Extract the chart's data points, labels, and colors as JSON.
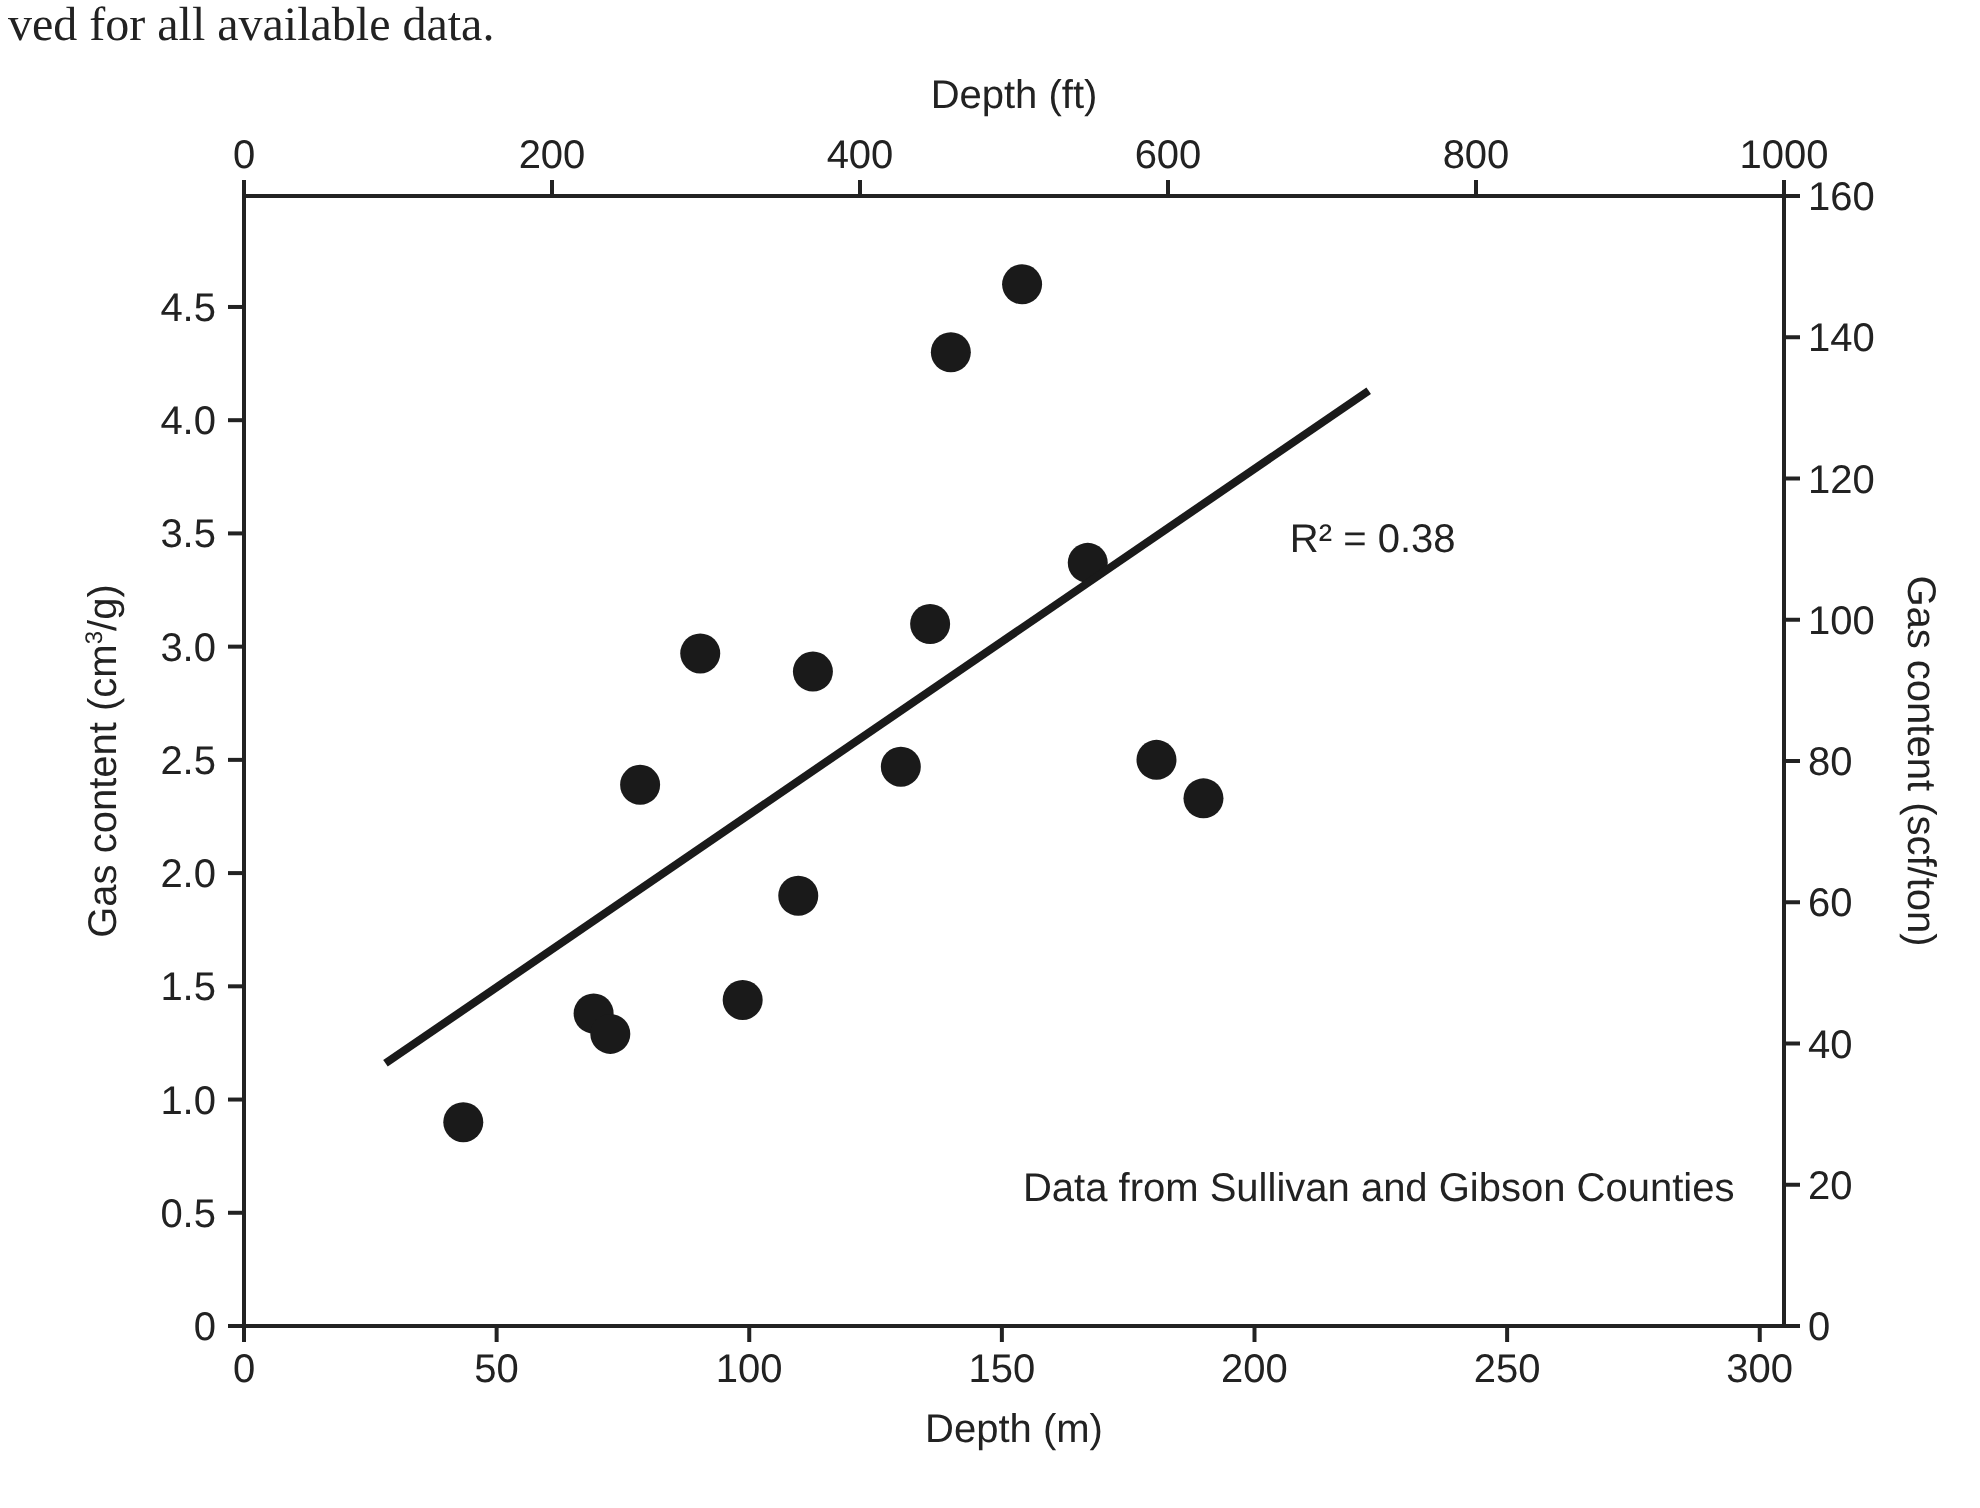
{
  "chart_data": {
    "type": "scatter",
    "xlabel": "Depth (m)",
    "x2label": "Depth (ft)",
    "ylabel": "Gas content (cm$^{3}$/g)",
    "y2label": "Gas content (scf/ton)",
    "xlim": [
      0,
      304.8
    ],
    "xticks": [
      0,
      50,
      100,
      150,
      200,
      250,
      300
    ],
    "x2lim": [
      0,
      1000
    ],
    "x2ticks": [
      0,
      200,
      400,
      600,
      800,
      1000
    ],
    "ylim": [
      0,
      4.99
    ],
    "yticks": [
      {
        "value": 0,
        "label": "0"
      },
      {
        "value": 0.5,
        "label": "0.5"
      },
      {
        "value": 1,
        "label": "1.0"
      },
      {
        "value": 1.5,
        "label": "1.5"
      },
      {
        "value": 2,
        "label": "2.0"
      },
      {
        "value": 2.5,
        "label": "2.5"
      },
      {
        "value": 3,
        "label": "3.0"
      },
      {
        "value": 3.5,
        "label": "3.5"
      },
      {
        "value": 4,
        "label": "4.0"
      },
      {
        "value": 4.5,
        "label": "4.5"
      }
    ],
    "y2lim": [
      0,
      160
    ],
    "y2ticks": [
      0,
      20,
      40,
      60,
      80,
      100,
      120,
      140,
      160
    ],
    "grid": false,
    "series": [
      {
        "marker": "circle",
        "color": "#1a1a1a",
        "x": [
          43.4,
          69.2,
          72.5,
          78.4,
          90.3,
          98.7,
          109.7,
          112.6,
          130.0,
          135.8,
          139.9,
          154.0,
          167.0,
          180.6,
          189.9
        ],
        "values": [
          0.9,
          1.38,
          1.29,
          2.39,
          2.97,
          1.44,
          1.9,
          2.89,
          2.47,
          3.1,
          4.3,
          4.6,
          3.37,
          2.5,
          2.33
        ]
      },
      {
        "type": "line",
        "color": "#1a1a1a",
        "x": [
          28.0,
          222.6
        ],
        "values": [
          1.16,
          4.13
        ]
      }
    ],
    "annotations": [
      "ved for all available data.",
      "R² = 0.38",
      "Data from Sullivan and Gibson Counties"
    ]
  }
}
